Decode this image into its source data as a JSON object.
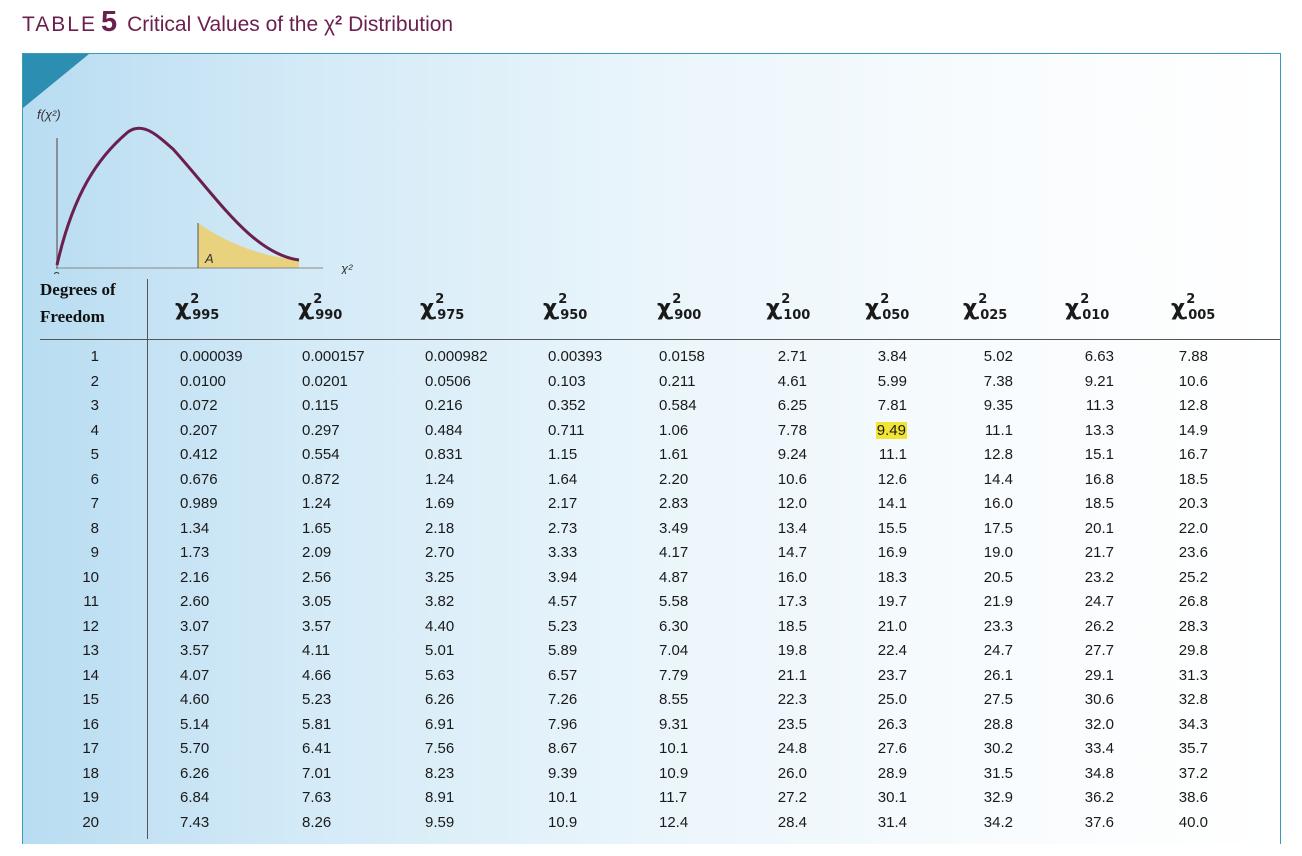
{
  "title": {
    "word": "TABLE",
    "number": "5",
    "text": "Critical Values of the χ",
    "exponent": "2",
    "suffix": " Distribution"
  },
  "graph": {
    "y_label": "f(χ²)",
    "x_label": "χ²",
    "origin": "0",
    "area_label": "A",
    "critical_label": "χ²",
    "critical_sub": "A"
  },
  "header": {
    "dof_line1": "Degrees of",
    "dof_line2": "Freedom"
  },
  "columns": [
    ".995",
    ".990",
    ".975",
    ".950",
    ".900",
    ".100",
    ".050",
    ".025",
    ".010",
    ".005"
  ],
  "highlight": {
    "row": 3,
    "col": 6,
    "color": "#f2e433"
  },
  "rows": [
    [
      "1",
      "0.000039",
      "0.000157",
      "0.000982",
      "0.00393",
      "0.0158",
      "2.71",
      "3.84",
      "5.02",
      "6.63",
      "7.88"
    ],
    [
      "2",
      "0.0100",
      "0.0201",
      "0.0506",
      "0.103",
      "0.211",
      "4.61",
      "5.99",
      "7.38",
      "9.21",
      "10.6"
    ],
    [
      "3",
      "0.072",
      "0.115",
      "0.216",
      "0.352",
      "0.584",
      "6.25",
      "7.81",
      "9.35",
      "11.3",
      "12.8"
    ],
    [
      "4",
      "0.207",
      "0.297",
      "0.484",
      "0.711",
      "1.06",
      "7.78",
      "9.49",
      "11.1",
      "13.3",
      "14.9"
    ],
    [
      "5",
      "0.412",
      "0.554",
      "0.831",
      "1.15",
      "1.61",
      "9.24",
      "11.1",
      "12.8",
      "15.1",
      "16.7"
    ],
    [
      "6",
      "0.676",
      "0.872",
      "1.24",
      "1.64",
      "2.20",
      "10.6",
      "12.6",
      "14.4",
      "16.8",
      "18.5"
    ],
    [
      "7",
      "0.989",
      "1.24",
      "1.69",
      "2.17",
      "2.83",
      "12.0",
      "14.1",
      "16.0",
      "18.5",
      "20.3"
    ],
    [
      "8",
      "1.34",
      "1.65",
      "2.18",
      "2.73",
      "3.49",
      "13.4",
      "15.5",
      "17.5",
      "20.1",
      "22.0"
    ],
    [
      "9",
      "1.73",
      "2.09",
      "2.70",
      "3.33",
      "4.17",
      "14.7",
      "16.9",
      "19.0",
      "21.7",
      "23.6"
    ],
    [
      "10",
      "2.16",
      "2.56",
      "3.25",
      "3.94",
      "4.87",
      "16.0",
      "18.3",
      "20.5",
      "23.2",
      "25.2"
    ],
    [
      "11",
      "2.60",
      "3.05",
      "3.82",
      "4.57",
      "5.58",
      "17.3",
      "19.7",
      "21.9",
      "24.7",
      "26.8"
    ],
    [
      "12",
      "3.07",
      "3.57",
      "4.40",
      "5.23",
      "6.30",
      "18.5",
      "21.0",
      "23.3",
      "26.2",
      "28.3"
    ],
    [
      "13",
      "3.57",
      "4.11",
      "5.01",
      "5.89",
      "7.04",
      "19.8",
      "22.4",
      "24.7",
      "27.7",
      "29.8"
    ],
    [
      "14",
      "4.07",
      "4.66",
      "5.63",
      "6.57",
      "7.79",
      "21.1",
      "23.7",
      "26.1",
      "29.1",
      "31.3"
    ],
    [
      "15",
      "4.60",
      "5.23",
      "6.26",
      "7.26",
      "8.55",
      "22.3",
      "25.0",
      "27.5",
      "30.6",
      "32.8"
    ],
    [
      "16",
      "5.14",
      "5.81",
      "6.91",
      "7.96",
      "9.31",
      "23.5",
      "26.3",
      "28.8",
      "32.0",
      "34.3"
    ],
    [
      "17",
      "5.70",
      "6.41",
      "7.56",
      "8.67",
      "10.1",
      "24.8",
      "27.6",
      "30.2",
      "33.4",
      "35.7"
    ],
    [
      "18",
      "6.26",
      "7.01",
      "8.23",
      "9.39",
      "10.9",
      "26.0",
      "28.9",
      "31.5",
      "34.8",
      "37.2"
    ],
    [
      "19",
      "6.84",
      "7.63",
      "8.91",
      "10.1",
      "11.7",
      "27.2",
      "30.1",
      "32.9",
      "36.2",
      "38.6"
    ],
    [
      "20",
      "7.43",
      "8.26",
      "9.59",
      "10.9",
      "12.4",
      "28.4",
      "31.4",
      "34.2",
      "37.6",
      "40.0"
    ]
  ]
}
